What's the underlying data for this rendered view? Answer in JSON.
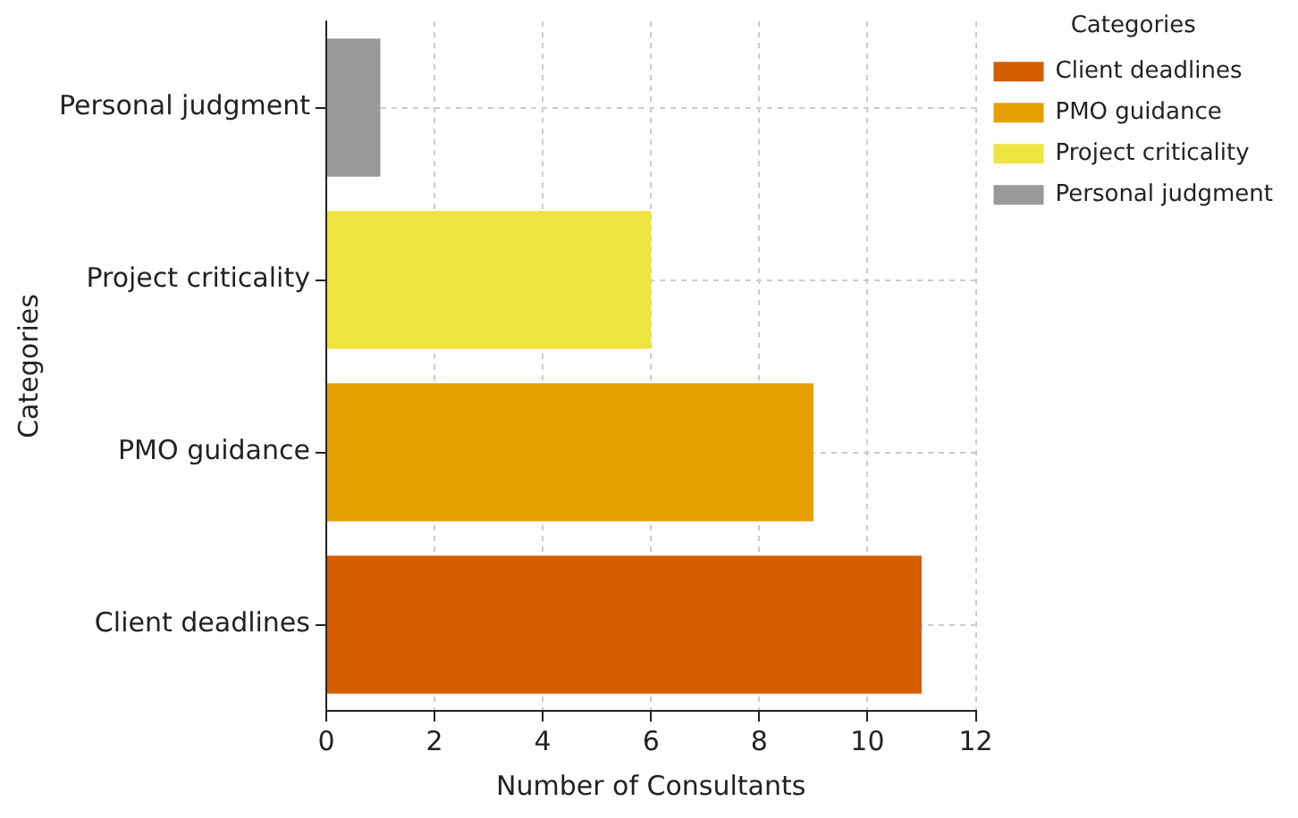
{
  "chart_data": {
    "type": "bar",
    "orientation": "horizontal",
    "categories": [
      "Personal judgment",
      "Project criticality",
      "PMO guidance",
      "Client deadlines"
    ],
    "series": [
      {
        "name": "Client deadlines",
        "color": "#d55e00",
        "values": [
          null,
          null,
          null,
          11
        ]
      },
      {
        "name": "PMO guidance",
        "color": "#e69f00",
        "values": [
          null,
          null,
          9,
          null
        ]
      },
      {
        "name": "Project criticality",
        "color": "#f0e442",
        "values": [
          null,
          6,
          null,
          null
        ]
      },
      {
        "name": "Personal judgment",
        "color": "#999999",
        "values": [
          1,
          null,
          null,
          null
        ]
      }
    ],
    "xlabel": "Number of Consultants",
    "ylabel": "Categories",
    "legend_title": "Categories",
    "xlim": [
      0,
      12
    ],
    "xticks": [
      0,
      2,
      4,
      6,
      8,
      10,
      12
    ],
    "grid": true,
    "legend": "top right"
  }
}
